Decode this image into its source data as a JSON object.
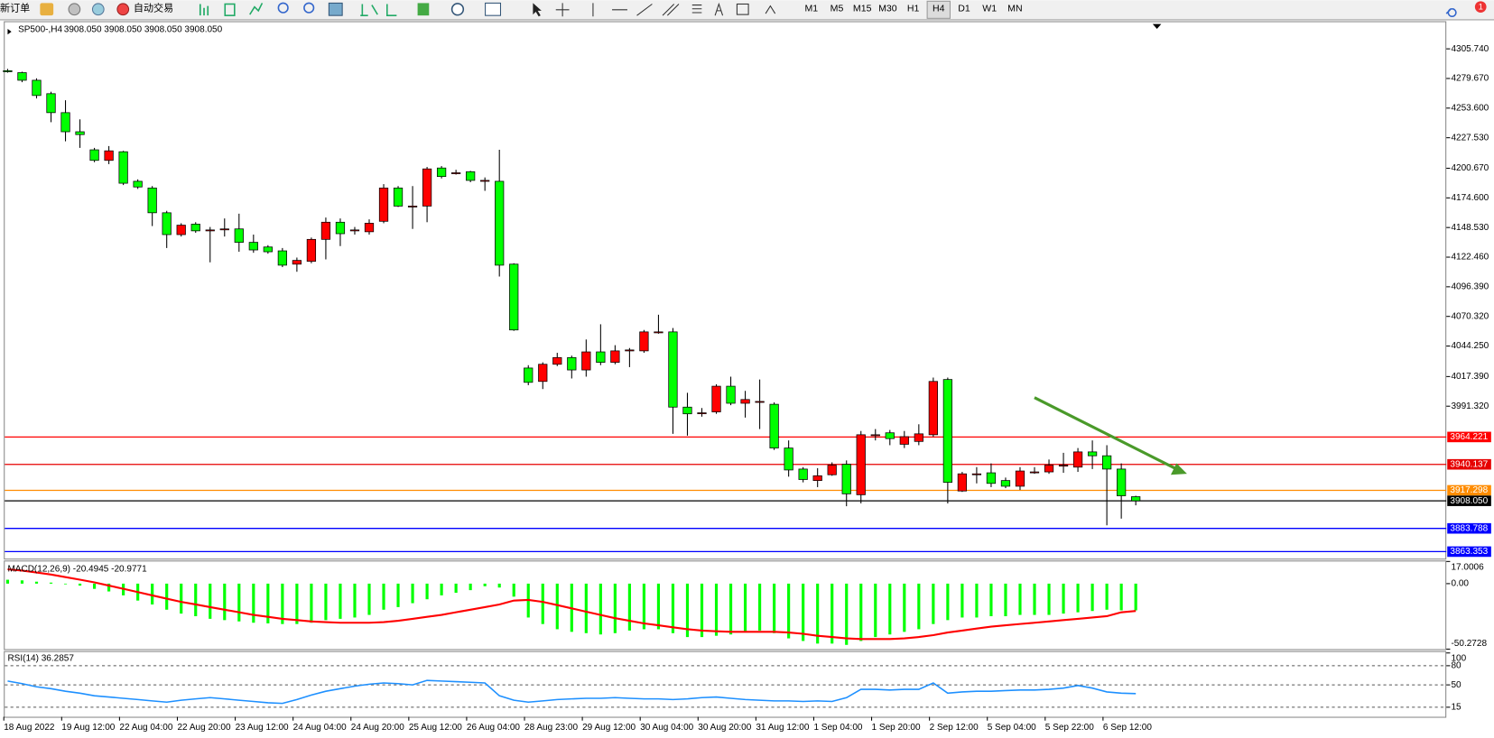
{
  "toolbar": {
    "new_order": "新订单",
    "auto_trading": "自动交易",
    "timeframes": [
      "M1",
      "M5",
      "M15",
      "M30",
      "H1",
      "H4",
      "D1",
      "W1",
      "MN"
    ],
    "active": "H4",
    "alerts": 1
  },
  "chart_data": [
    {
      "type": "candlestick",
      "title": "SP500-,H4",
      "subtitle": "3908.050 3908.050 3908.050 3908.050",
      "up_color": "#ff0000",
      "down_color": "#00ff00",
      "ylim": [
        3857.2,
        4330.06
      ],
      "yticks": [
        {
          "value": 4305.74,
          "label": "4305.740"
        },
        {
          "value": 4279.67,
          "label": "4279.670"
        },
        {
          "value": 4253.6,
          "label": "4253.600"
        },
        {
          "value": 4227.53,
          "label": "4227.530"
        },
        {
          "value": 4200.67,
          "label": "4200.670"
        },
        {
          "value": 4174.6,
          "label": "4174.600"
        },
        {
          "value": 4148.53,
          "label": "4148.530"
        },
        {
          "value": 4122.46,
          "label": "4122.460"
        },
        {
          "value": 4096.39,
          "label": "4096.390"
        },
        {
          "value": 4070.32,
          "label": "4070.320"
        },
        {
          "value": 4044.25,
          "label": "4044.250"
        },
        {
          "value": 4017.39,
          "label": "4017.390"
        },
        {
          "value": 3991.32,
          "label": "3991.320"
        }
      ],
      "levels": [
        {
          "value": 3964.221,
          "label": "3964.221",
          "color": "#ff0000"
        },
        {
          "value": 3940.137,
          "label": "3940.137",
          "color": "#e60000"
        },
        {
          "value": 3917.298,
          "label": "3917.298",
          "color": "#ff8c00"
        },
        {
          "value": 3908.05,
          "label": "3908.050",
          "color": "#000000"
        },
        {
          "value": 3883.788,
          "label": "3883.788",
          "color": "#0000ff"
        },
        {
          "value": 3863.353,
          "label": "3863.353",
          "color": "#0000ff"
        }
      ],
      "categories": [
        "18 Aug 2022",
        null,
        null,
        null,
        "19 Aug 12:00",
        null,
        null,
        null,
        "22 Aug 04:00",
        null,
        null,
        null,
        "22 Aug 20:00",
        null,
        null,
        null,
        "23 Aug 12:00",
        null,
        null,
        null,
        "24 Aug 04:00",
        null,
        null,
        null,
        "24 Aug 20:00",
        null,
        null,
        null,
        "25 Aug 12:00",
        null,
        null,
        null,
        "26 Aug 04:00",
        null,
        null,
        null,
        "28 Aug 23:00",
        null,
        null,
        null,
        "29 Aug 12:00",
        null,
        null,
        null,
        "30 Aug 04:00",
        null,
        null,
        null,
        "30 Aug 20:00",
        null,
        null,
        null,
        "31 Aug 12:00",
        null,
        null,
        null,
        "1 Sep 04:00",
        null,
        null,
        null,
        "1 Sep 20:00",
        null,
        null,
        null,
        "2 Sep 12:00",
        null,
        null,
        null,
        "5 Sep 04:00",
        null,
        null,
        null,
        "5 Sep 22:00",
        null,
        null,
        null,
        "6 Sep 12:00",
        null,
        null
      ],
      "candles": [
        [
          4286.5,
          4288.1,
          4284.8,
          4285.6
        ],
        [
          4284.8,
          4285.6,
          4276.4,
          4278.1
        ],
        [
          4278.1,
          4279.8,
          4262.1,
          4264.7
        ],
        [
          4266.3,
          4268.0,
          4241.2,
          4249.6
        ],
        [
          4249.6,
          4260.5,
          4224.4,
          4232.8
        ],
        [
          4232.8,
          4243.7,
          4218.6,
          4230.3
        ],
        [
          4216.9,
          4218.6,
          4206.0,
          4207.6
        ],
        [
          4207.6,
          4220.2,
          4204.3,
          4216.0
        ],
        [
          4215.2,
          4216.0,
          4185.9,
          4187.5
        ],
        [
          4189.2,
          4190.9,
          4182.5,
          4184.2
        ],
        [
          4183.3,
          4185.0,
          4149.8,
          4161.5
        ],
        [
          4161.5,
          4163.2,
          4130.5,
          4142.3
        ],
        [
          4142.3,
          4152.3,
          4140.6,
          4150.6
        ],
        [
          4151.5,
          4153.2,
          4143.9,
          4145.6
        ],
        [
          4146.4,
          4149.0,
          4117.9,
          4146.4
        ],
        [
          4147.3,
          4156.5,
          4140.6,
          4147.3
        ],
        [
          4147.3,
          4160.7,
          4127.2,
          4135.5
        ],
        [
          4135.5,
          4142.3,
          4126.3,
          4128.8
        ],
        [
          4131.4,
          4133.0,
          4125.5,
          4127.2
        ],
        [
          4128.0,
          4130.5,
          4113.7,
          4115.4
        ],
        [
          4116.3,
          4122.1,
          4109.6,
          4119.6
        ],
        [
          4118.8,
          4139.7,
          4117.1,
          4138.1
        ],
        [
          4138.1,
          4157.3,
          4120.5,
          4153.2
        ],
        [
          4153.2,
          4156.5,
          4132.2,
          4143.1
        ],
        [
          4146.4,
          4149.0,
          4142.3,
          4146.4
        ],
        [
          4144.8,
          4155.7,
          4142.3,
          4152.3
        ],
        [
          4154.0,
          4186.7,
          4152.3,
          4183.3
        ],
        [
          4183.3,
          4185.0,
          4166.6,
          4167.4
        ],
        [
          4167.4,
          4185.0,
          4147.3,
          4167.4
        ],
        [
          4167.4,
          4201.8,
          4153.2,
          4200.1
        ],
        [
          4200.9,
          4202.6,
          4191.7,
          4193.4
        ],
        [
          4196.7,
          4199.3,
          4195.1,
          4196.7
        ],
        [
          4197.6,
          4198.4,
          4188.4,
          4190.0
        ],
        [
          4190.0,
          4192.6,
          4180.8,
          4190.0
        ],
        [
          4189.2,
          4216.9,
          4105.4,
          4115.4
        ],
        [
          4116.3,
          4117.1,
          4057.6,
          4058.4
        ],
        [
          4024.9,
          4027.4,
          4009.8,
          4012.3
        ],
        [
          4013.1,
          4029.9,
          4006.4,
          4028.2
        ],
        [
          4028.2,
          4038.3,
          4026.6,
          4034.1
        ],
        [
          4034.1,
          4035.8,
          4015.7,
          4023.2
        ],
        [
          4023.2,
          4050.0,
          4017.3,
          4039.1
        ],
        [
          4039.1,
          4063.4,
          4027.4,
          4029.9
        ],
        [
          4029.9,
          4045.0,
          4028.2,
          4040.0
        ],
        [
          4040.8,
          4042.5,
          4025.7,
          4040.8
        ],
        [
          4040.0,
          4058.4,
          4038.3,
          4056.7
        ],
        [
          4056.7,
          4071.8,
          4055.1,
          4056.7
        ],
        [
          4056.7,
          4060.1,
          3967.0,
          3990.5
        ],
        [
          3990.5,
          4003.1,
          3965.4,
          3984.6
        ],
        [
          3985.5,
          3989.7,
          3982.1,
          3985.5
        ],
        [
          3986.3,
          4010.6,
          3984.6,
          4008.9
        ],
        [
          4008.9,
          4017.3,
          3992.2,
          3993.9
        ],
        [
          3993.9,
          4004.8,
          3981.3,
          3997.2
        ],
        [
          3995.5,
          4014.8,
          3971.2,
          3995.5
        ],
        [
          3993.0,
          3994.7,
          3952.8,
          3954.5
        ],
        [
          3954.5,
          3961.2,
          3929.3,
          3935.2
        ],
        [
          3936.0,
          3937.7,
          3924.3,
          3926.8
        ],
        [
          3925.9,
          3936.8,
          3920.1,
          3930.1
        ],
        [
          3931.0,
          3941.9,
          3930.1,
          3939.4
        ],
        [
          3940.2,
          3943.6,
          3903.3,
          3914.2
        ],
        [
          3913.4,
          3969.5,
          3905.8,
          3966.2
        ],
        [
          3966.2,
          3971.2,
          3961.2,
          3966.2
        ],
        [
          3967.9,
          3970.4,
          3957.0,
          3962.8
        ],
        [
          3957.8,
          3969.5,
          3954.5,
          3964.5
        ],
        [
          3960.3,
          3975.4,
          3957.0,
          3967.0
        ],
        [
          3966.2,
          4016.5,
          3964.5,
          4013.1
        ],
        [
          4014.8,
          4016.5,
          3905.8,
          3924.3
        ],
        [
          3916.7,
          3933.5,
          3915.9,
          3931.8
        ],
        [
          3931.8,
          3937.7,
          3923.4,
          3931.8
        ],
        [
          3932.7,
          3941.0,
          3920.1,
          3923.4
        ],
        [
          3925.9,
          3928.5,
          3919.2,
          3920.9
        ],
        [
          3920.9,
          3937.7,
          3917.6,
          3934.3
        ],
        [
          3933.5,
          3937.7,
          3931.8,
          3933.5
        ],
        [
          3933.5,
          3944.4,
          3931.8,
          3939.4
        ],
        [
          3939.4,
          3950.3,
          3932.7,
          3939.4
        ],
        [
          3937.7,
          3954.5,
          3933.5,
          3951.1
        ],
        [
          3951.1,
          3961.2,
          3936.0,
          3947.7
        ],
        [
          3947.7,
          3957.0,
          3886.5,
          3936.0
        ],
        [
          3936.0,
          3941.0,
          3892.4,
          3912.5
        ],
        [
          3911.7,
          3912.5,
          3904.1,
          3908.05
        ]
      ]
    },
    {
      "type": "macd",
      "title": "MACD(12,26,9) -20.4945 -20.9771",
      "histogram_color": "#00ff00",
      "signal_color": "#ff0000",
      "ylim": [
        -50.2728,
        17.0006
      ],
      "yticks": [
        17.0006,
        {
          "value": 0,
          "label": "0.00"
        },
        -50.2728
      ],
      "histogram": [
        3.0,
        2.5,
        1.5,
        0.8,
        -0.5,
        -1.5,
        -4,
        -6,
        -9,
        -13,
        -16,
        -20,
        -23,
        -25,
        -27,
        -28,
        -29,
        -30,
        -30.5,
        -31,
        -31,
        -30,
        -28,
        -27,
        -26,
        -24,
        -20,
        -18,
        -15,
        -12,
        -9,
        -7,
        -5,
        -2,
        -3,
        -10,
        -26,
        -31,
        -35,
        -37,
        -38,
        -39,
        -38,
        -36,
        -35,
        -35,
        -38,
        -41,
        -41,
        -40,
        -39,
        -37,
        -36,
        -38,
        -42,
        -44,
        -46,
        -46,
        -47,
        -44,
        -41,
        -39,
        -37,
        -35,
        -31,
        -28,
        -26,
        -26,
        -25,
        -25,
        -24,
        -24,
        -24,
        -23,
        -22,
        -21,
        -20,
        -20.5,
        -20.4945
      ],
      "signal": [
        11,
        10,
        8.5,
        7,
        5,
        3,
        1,
        -1.5,
        -4,
        -6.5,
        -9,
        -11.5,
        -14,
        -16,
        -18,
        -20,
        -22,
        -24,
        -25.5,
        -27,
        -28,
        -29,
        -29.5,
        -30,
        -30,
        -30,
        -29.5,
        -28.5,
        -27,
        -25.5,
        -24,
        -22,
        -20,
        -18,
        -16,
        -13,
        -12.5,
        -14,
        -16.5,
        -19,
        -21.5,
        -24,
        -26.5,
        -28.5,
        -30.5,
        -32,
        -33.5,
        -35,
        -36,
        -36.5,
        -37,
        -37,
        -37,
        -37,
        -37.5,
        -38.5,
        -40,
        -41,
        -42,
        -42.5,
        -42.5,
        -42.5,
        -42,
        -41,
        -39.5,
        -37.5,
        -36,
        -34.5,
        -33,
        -32,
        -31,
        -30,
        -29,
        -28,
        -27,
        -26,
        -25,
        -22,
        -20.9771
      ]
    },
    {
      "type": "line",
      "title": "RSI(14) 36.2857",
      "color": "#1e90ff",
      "ylim": [
        0,
        100
      ],
      "yticks": [
        100,
        80,
        50,
        15
      ],
      "levels": [
        80,
        50,
        15
      ],
      "values": [
        56,
        52,
        47,
        44,
        40,
        37,
        33,
        31,
        29,
        27,
        25,
        23,
        26,
        28,
        30,
        28,
        26,
        24,
        22,
        21,
        27,
        34,
        40,
        44,
        48,
        51,
        53,
        52,
        50,
        57,
        56,
        55,
        54,
        53,
        33,
        26,
        23,
        25,
        27,
        28,
        29,
        29,
        30,
        29,
        28,
        28,
        27,
        28,
        30,
        31,
        29,
        27,
        26,
        25,
        25,
        24,
        25,
        24,
        30,
        43,
        43,
        42,
        43,
        43,
        53,
        37,
        39,
        40,
        40,
        41,
        42,
        42,
        43,
        45,
        49,
        45,
        39,
        37,
        36.2857
      ]
    }
  ]
}
